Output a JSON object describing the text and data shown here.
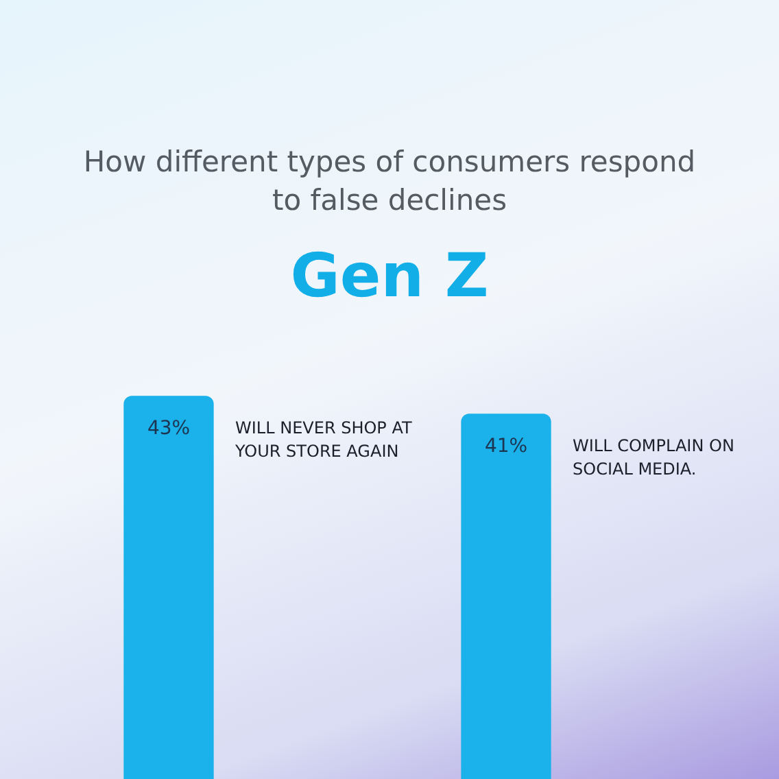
{
  "chart_data": {
    "type": "bar",
    "title": "How different types of consumers respond to false declines",
    "subtitle": "Gen Z",
    "categories": [
      null,
      null
    ],
    "values": [
      43,
      41
    ],
    "color": "#1bb1ea",
    "value_labels": [
      "43%",
      "41%"
    ],
    "annotations": [
      "WILL NEVER SHOP AT YOUR STORE AGAIN",
      "WILL COMPLAIN ON SOCIAL MEDIA."
    ]
  }
}
